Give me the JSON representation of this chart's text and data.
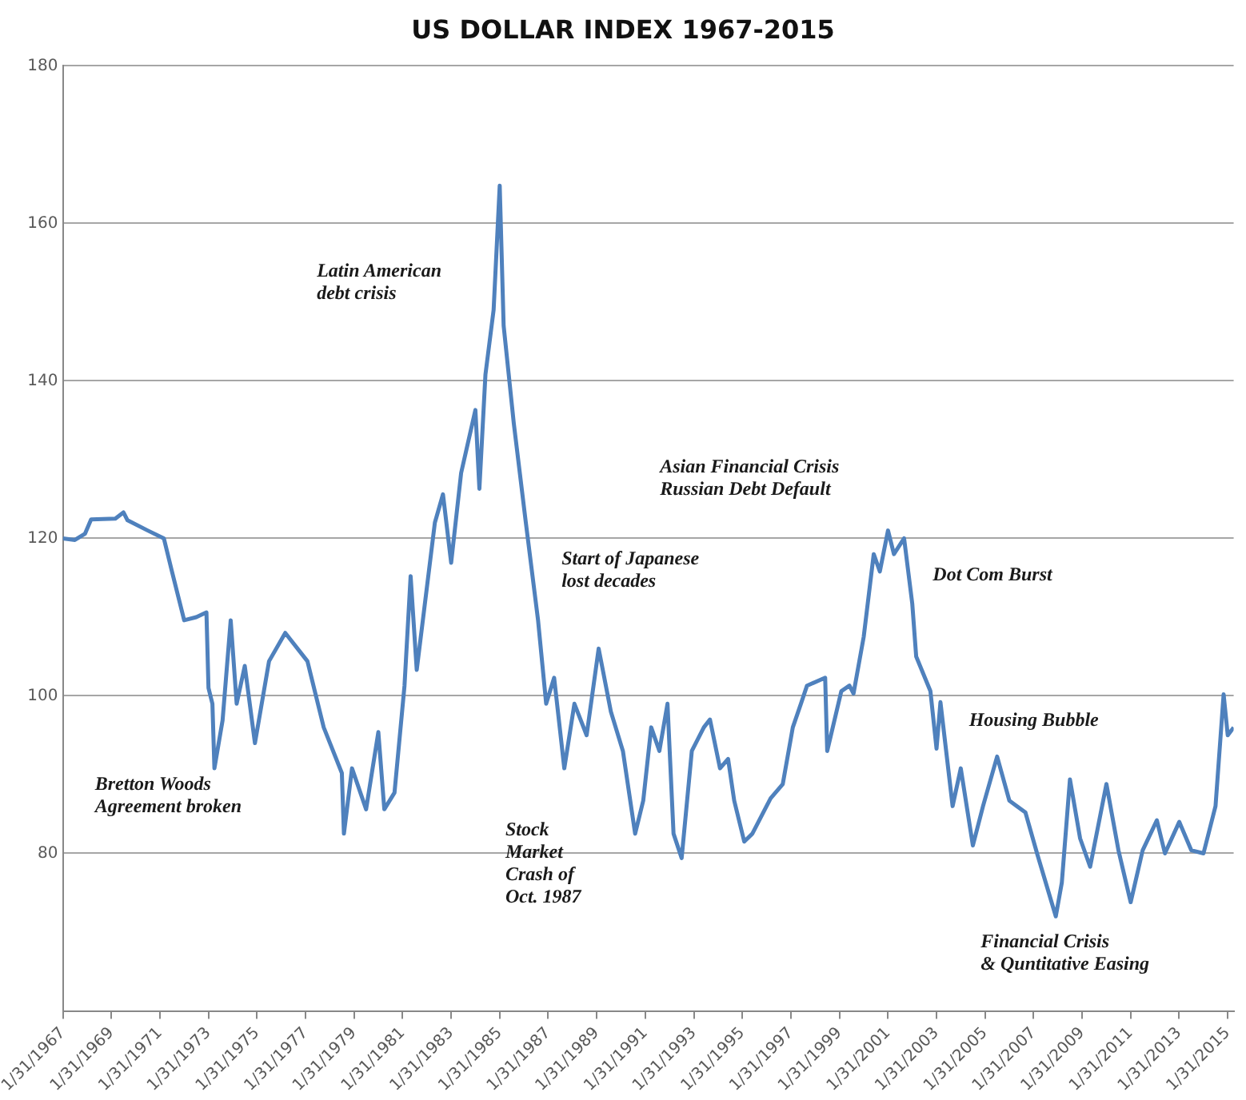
{
  "chart_data": {
    "type": "line",
    "title": "US DOLLAR INDEX 1967-2015",
    "x": [
      "1967-02",
      "1967-08",
      "1968-01",
      "1968-04",
      "1969-04",
      "1969-08",
      "1969-10",
      "1970-08",
      "1971-04",
      "1971-08",
      "1972-02",
      "1972-08",
      "1973-01",
      "1973-02",
      "1973-04",
      "1973-05",
      "1973-09",
      "1974-01",
      "1974-04",
      "1974-08",
      "1975-01",
      "1975-08",
      "1976-04",
      "1977-03",
      "1977-11",
      "1978-08",
      "1978-09",
      "1979-01",
      "1979-08",
      "1980-02",
      "1980-05",
      "1980-10",
      "1981-03",
      "1981-06",
      "1981-09",
      "1982-06",
      "1982-10",
      "1983-02",
      "1983-07",
      "1984-02",
      "1984-04",
      "1984-07",
      "1984-11",
      "1985-02",
      "1985-04",
      "1985-09",
      "1986-03",
      "1986-09",
      "1987-01",
      "1987-05",
      "1987-10",
      "1988-03",
      "1988-09",
      "1989-03",
      "1989-09",
      "1990-03",
      "1990-09",
      "1991-01",
      "1991-05",
      "1991-09",
      "1992-01",
      "1992-04",
      "1992-08",
      "1993-01",
      "1993-07",
      "1993-10",
      "1994-03",
      "1994-07",
      "1994-10",
      "1995-03",
      "1995-07",
      "1996-04",
      "1996-10",
      "1997-03",
      "1997-07",
      "1997-10",
      "1998-07",
      "1998-08",
      "1999-03",
      "1999-07",
      "1999-09",
      "2000-02",
      "2000-07",
      "2000-10",
      "2001-02",
      "2001-05",
      "2001-10",
      "2002-02",
      "2002-04",
      "2002-11",
      "2003-02",
      "2003-04",
      "2003-10",
      "2004-02",
      "2004-08",
      "2005-01",
      "2005-08",
      "2006-02",
      "2006-10",
      "2007-04",
      "2008-01",
      "2008-04",
      "2008-08",
      "2009-01",
      "2009-06",
      "2010-02",
      "2010-08",
      "2011-02",
      "2011-08",
      "2012-03",
      "2012-07",
      "2013-02",
      "2013-08",
      "2014-02",
      "2014-08",
      "2014-12",
      "2015-02",
      "2015-05"
    ],
    "series": [
      {
        "color": "#4f81bd",
        "values": [
          120,
          119.8,
          120.6,
          122.4,
          122.5,
          123.3,
          122.3,
          121,
          120,
          115.8,
          109.6,
          110,
          110.6,
          101,
          99,
          90.8,
          96.9,
          109.6,
          99,
          103.8,
          94,
          104.4,
          108,
          104.4,
          96,
          90.2,
          82.5,
          90.8,
          85.6,
          95.4,
          85.6,
          87.7,
          101.3,
          115.2,
          103.3,
          122,
          125.6,
          116.9,
          128.3,
          136.3,
          126.3,
          140.8,
          149,
          164.8,
          147,
          134.6,
          122,
          109.6,
          99,
          102.3,
          90.8,
          99,
          95,
          106,
          98,
          93,
          82.5,
          86.7,
          96,
          93,
          99,
          82.5,
          79.4,
          93,
          96,
          97,
          90.8,
          92,
          86.7,
          81.5,
          82.5,
          87,
          88.8,
          96,
          99,
          101.3,
          102.3,
          93,
          100.6,
          101.3,
          100.3,
          107.5,
          118,
          115.8,
          121,
          118,
          120,
          111.7,
          105,
          100.6,
          93.3,
          99.2,
          86,
          90.8,
          81,
          86,
          92.3,
          86.7,
          85.2,
          79.8,
          72,
          76.3,
          89.4,
          81.9,
          78.3,
          88.8,
          80.4,
          73.8,
          80.4,
          84.2,
          80,
          84,
          80.4,
          80,
          86,
          100.2,
          95,
          96
        ]
      }
    ],
    "xlim": [
      "1967-01-31",
      "2015-05"
    ],
    "xticks": [
      {
        "value": "1967-01-31",
        "label": "1/31/1967"
      },
      {
        "value": "1969-01-31",
        "label": "1/31/1969"
      },
      {
        "value": "1971-01-31",
        "label": "1/31/1971"
      },
      {
        "value": "1973-01-31",
        "label": "1/31/1973"
      },
      {
        "value": "1975-01-31",
        "label": "1/31/1975"
      },
      {
        "value": "1977-01-31",
        "label": "1/31/1977"
      },
      {
        "value": "1979-01-31",
        "label": "1/31/1979"
      },
      {
        "value": "1981-01-31",
        "label": "1/31/1981"
      },
      {
        "value": "1983-01-31",
        "label": "1/31/1983"
      },
      {
        "value": "1985-01-31",
        "label": "1/31/1985"
      },
      {
        "value": "1987-01-31",
        "label": "1/31/1987"
      },
      {
        "value": "1989-01-31",
        "label": "1/31/1989"
      },
      {
        "value": "1991-01-31",
        "label": "1/31/1991"
      },
      {
        "value": "1993-01-31",
        "label": "1/31/1993"
      },
      {
        "value": "1995-01-31",
        "label": "1/31/1995"
      },
      {
        "value": "1997-01-31",
        "label": "1/31/1997"
      },
      {
        "value": "1999-01-31",
        "label": "1/31/1999"
      },
      {
        "value": "2001-01-31",
        "label": "1/31/2001"
      },
      {
        "value": "2003-01-31",
        "label": "1/31/2003"
      },
      {
        "value": "2005-01-31",
        "label": "1/31/2005"
      },
      {
        "value": "2007-01-31",
        "label": "1/31/2007"
      },
      {
        "value": "2009-01-31",
        "label": "1/31/2009"
      },
      {
        "value": "2011-01-31",
        "label": "1/31/2011"
      },
      {
        "value": "2013-01-31",
        "label": "1/31/2013"
      },
      {
        "value": "2015-01-31",
        "label": "1/31/2015"
      }
    ],
    "ylim": [
      60,
      180
    ],
    "yticks": [
      80,
      100,
      120,
      140,
      160,
      180
    ],
    "grid": "y",
    "marker": "none",
    "line_style": "solid",
    "annotations": [
      "Bretton Woods\nAgreement broken",
      "Latin American\ndebt crisis",
      "Start of Japanese\nlost decades",
      "Stock\nMarket\nCrash of\nOct. 1987",
      "Asian Financial Crisis\nRussian Debt Default",
      "Dot Com Burst",
      "Housing Bubble",
      "Financial Crisis\n& Quntitative Easing"
    ]
  }
}
